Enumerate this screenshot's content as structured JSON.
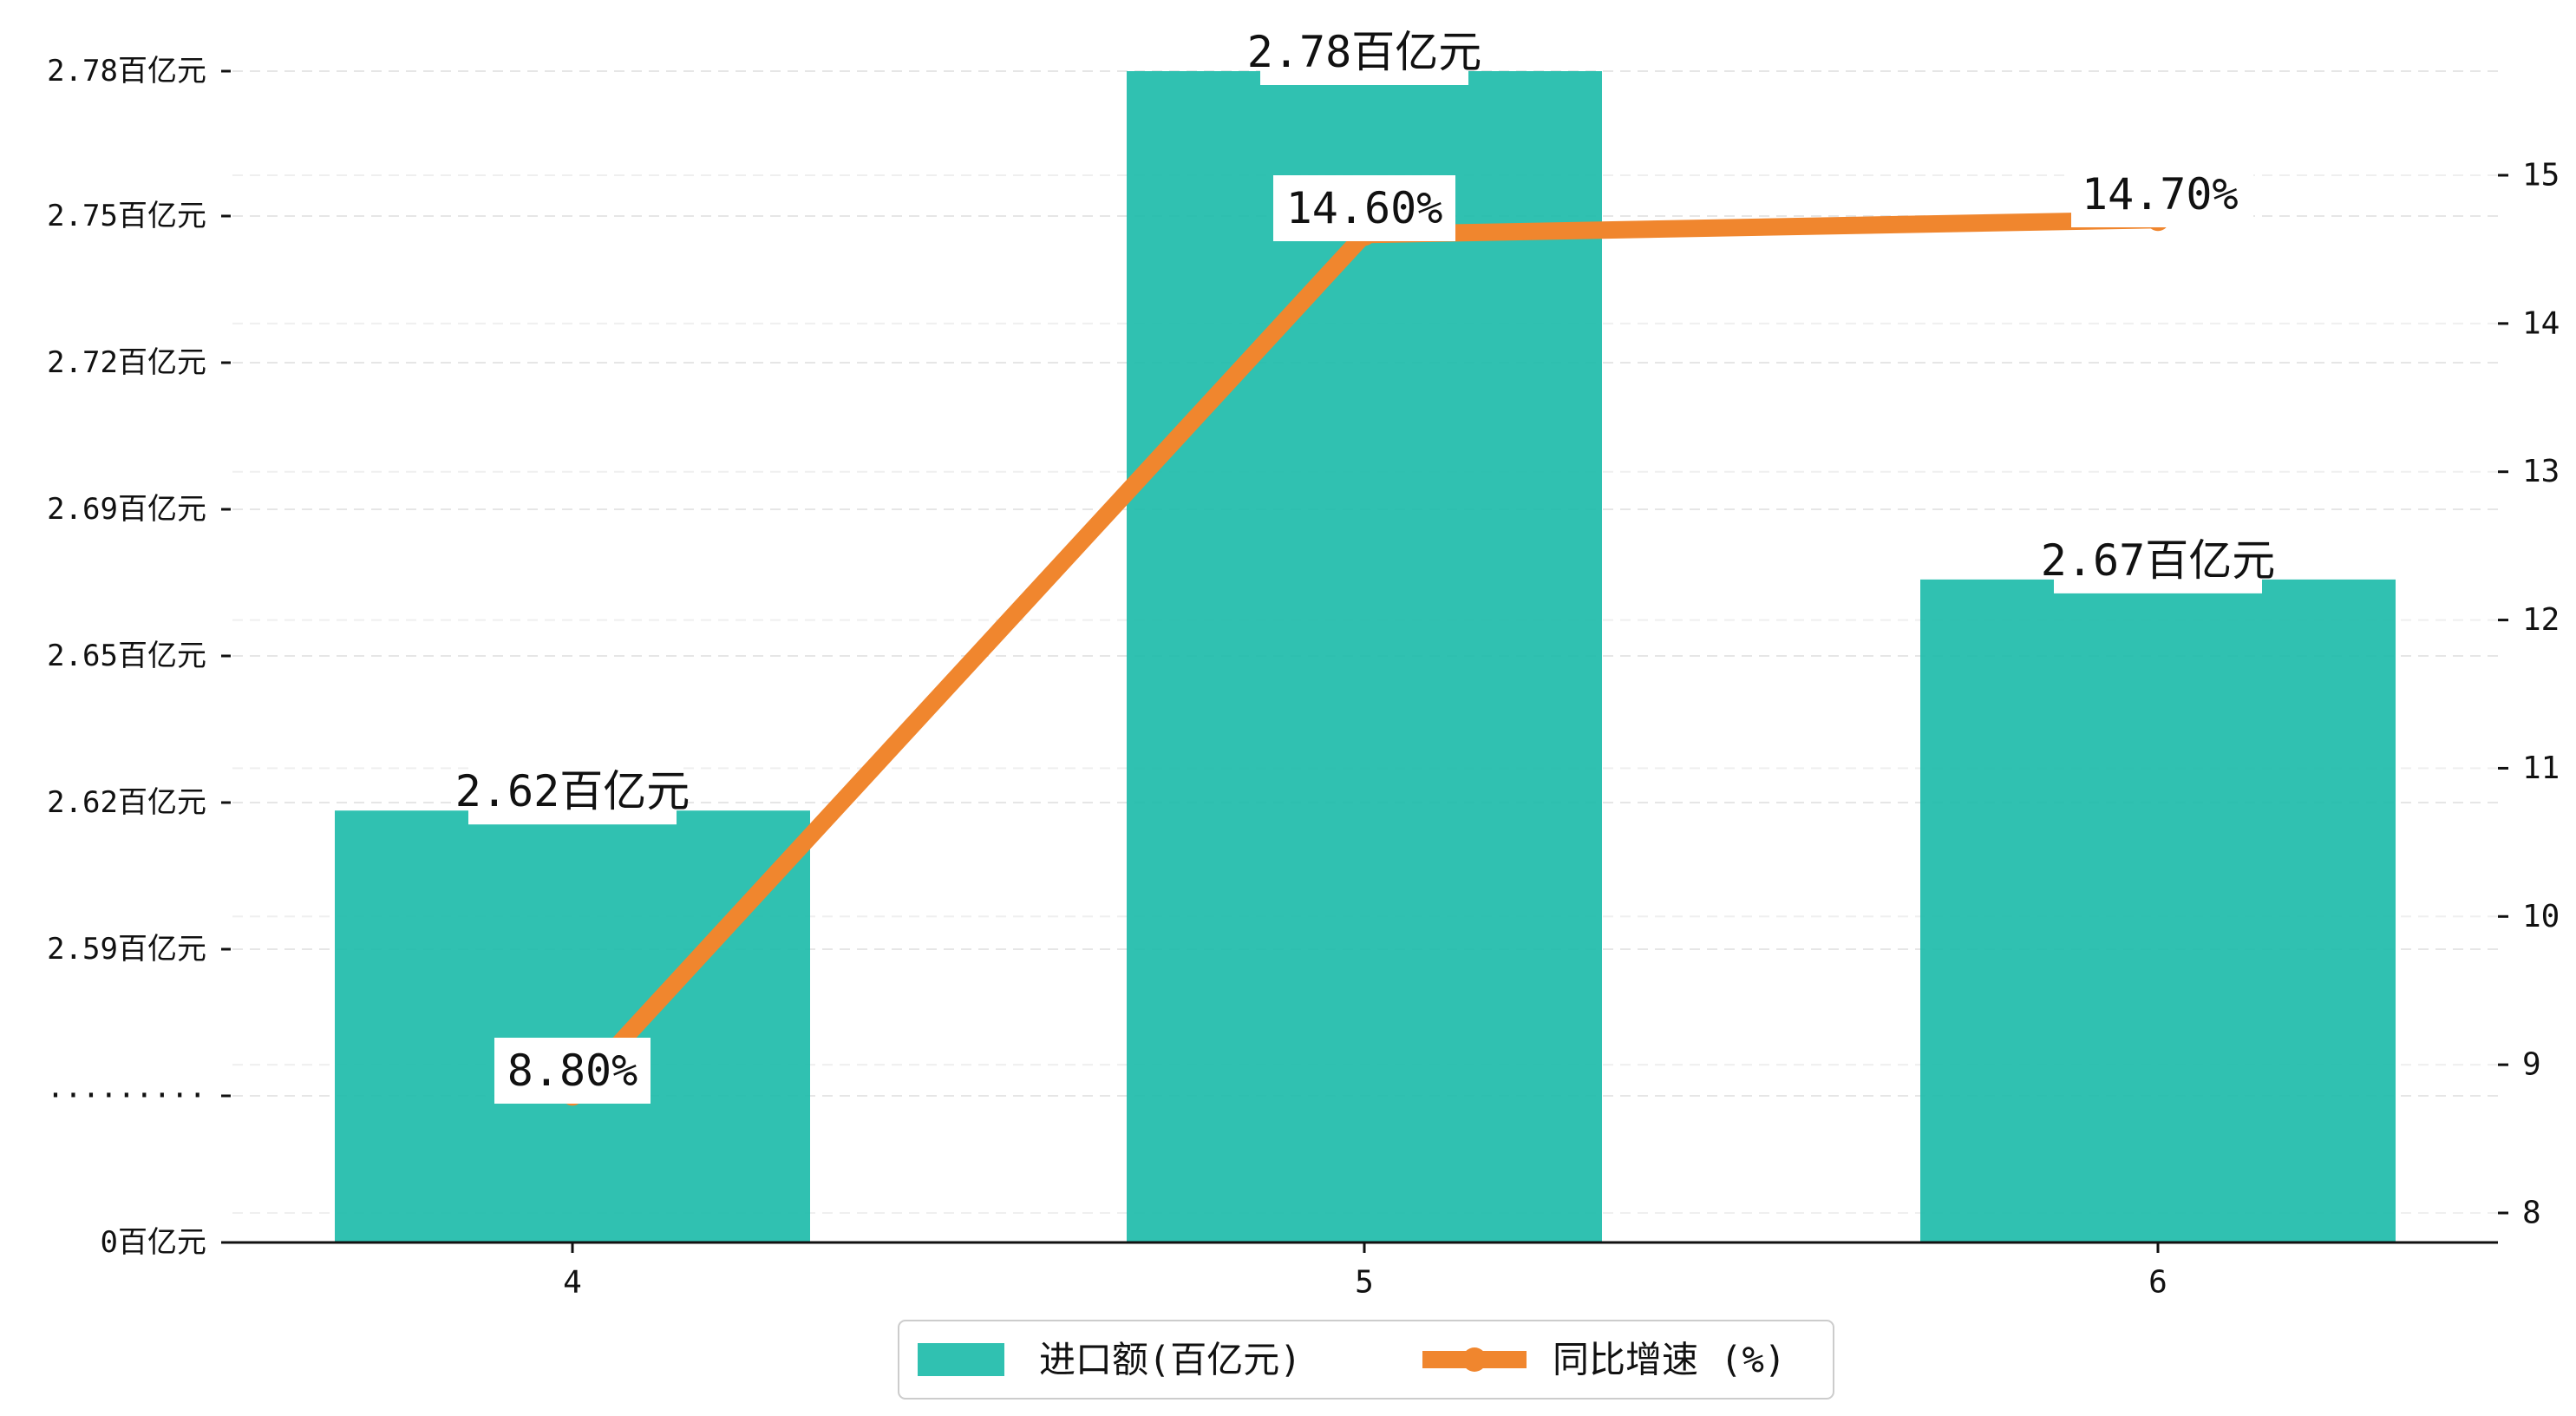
{
  "chart_data": {
    "type": "bar",
    "categories": [
      "4",
      "5",
      "6"
    ],
    "series": [
      {
        "name": "进口额(百亿元)",
        "type": "bar",
        "axis": "left",
        "color": "#1ABAA8",
        "values": [
          2.62,
          2.78,
          2.67
        ],
        "data_labels": [
          "2.62百亿元",
          "2.78百亿元",
          "2.67百亿元"
        ]
      },
      {
        "name": "同比增速 (%)",
        "type": "line",
        "axis": "right",
        "color": "#F0862E",
        "values": [
          8.8,
          14.6,
          14.7
        ],
        "data_labels": [
          "8.80%",
          "14.60%",
          "14.70%"
        ]
      }
    ],
    "y_left": {
      "ticks": [
        "0百亿元",
        "·········",
        "2.59百亿元",
        "2.62百亿元",
        "2.65百亿元",
        "2.69百亿元",
        "2.72百亿元",
        "2.75百亿元",
        "2.78百亿元"
      ],
      "broken_axis": true
    },
    "y_right": {
      "ticks": [
        "8",
        "9",
        "10",
        "11",
        "12",
        "13",
        "14",
        "15"
      ],
      "range": [
        7.9,
        15.7
      ]
    },
    "grid": true,
    "legend_position": "bottom-center"
  }
}
